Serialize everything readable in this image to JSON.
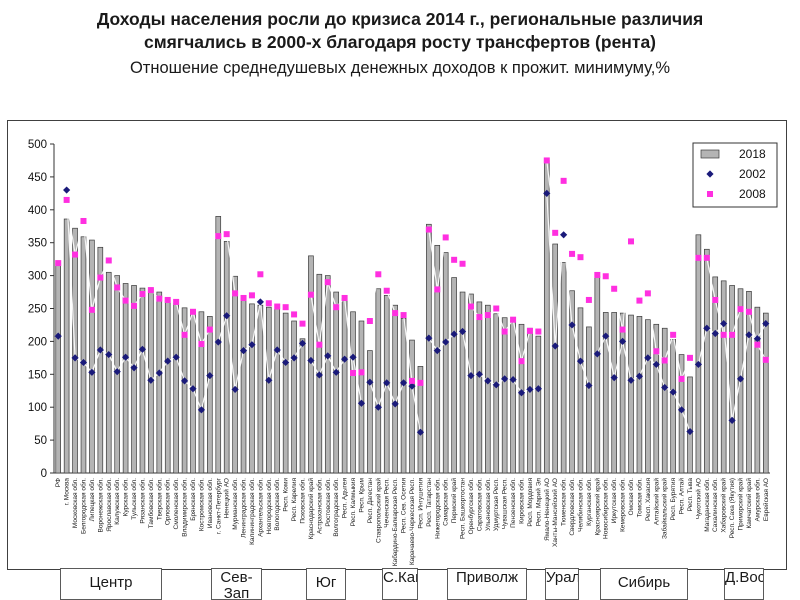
{
  "header": {
    "title_line1": "Доходы населения росли до кризиса 2014 г., региональные различия",
    "title_line2": "смягчались в 2000-х благодаря росту трансфертов (рента)",
    "subtitle": "Отношение среднедушевых денежных доходов к прожит. минимуму,%"
  },
  "regions": [
    "Центр",
    "Сев-Зап",
    "Юг",
    "С.Кав",
    "Приволж",
    "Урал",
    "Сибирь",
    "Д.Вост"
  ],
  "chart_data": {
    "type": "bar",
    "ylim": [
      0,
      500
    ],
    "yticks": [
      0,
      50,
      100,
      150,
      200,
      250,
      300,
      350,
      400,
      450,
      500
    ],
    "grid": false,
    "legend_position": "top-right",
    "colors": {
      "bar_2018": "#b4b4b4",
      "series_2002": "#1a1a7a",
      "series_2008": "#ff2fe0"
    },
    "legend": [
      "2018",
      "2002",
      "2008"
    ],
    "categories": [
      "РФ",
      "г. Москва",
      "Московская обл.",
      "Белгородская обл.",
      "Липецкая обл.",
      "Воронежская обл.",
      "Ярославская обл.",
      "Калужская обл.",
      "Курская обл.",
      "Тульская обл.",
      "Рязанская обл.",
      "Тамбовская обл.",
      "Тверская обл.",
      "Орловская обл.",
      "Смоленская обл.",
      "Владимирская обл.",
      "Брянская обл.",
      "Костромская обл.",
      "Ивановская обл.",
      "г. Санкт-Петербург",
      "Ненецкий АО",
      "Мурманская обл.",
      "Ленинградская обл.",
      "Калининградская обл.",
      "Архангельская обл.",
      "Новгородская обл.",
      "Вологодская обл.",
      "Респ. Коми",
      "Респ. Карелия",
      "Псковская обл.",
      "Краснодарский край",
      "Астраханская обл.",
      "Ростовская обл.",
      "Волгоградская обл.",
      "Респ. Адыгея",
      "Респ. Калмыкия",
      "Респ. Крым",
      "Респ. Дагестан",
      "Ставропольский край",
      "Чеченская Респ.",
      "Кабардино-Балкарская Респ.",
      "Респ. Сев. Осетия",
      "Карачаево-Черкесская Респ.",
      "Респ. Ингушетия",
      "Респ. Татарстан",
      "Нижегородская обл.",
      "Самарская обл.",
      "Пермский край",
      "Респ. Башкортостан",
      "Оренбургская обл.",
      "Саратовская обл.",
      "Ульяновская обл.",
      "Удмуртская Респ.",
      "Чувашская Респ.",
      "Пензенская обл.",
      "Кировская обл.",
      "Респ. Мордовия",
      "Респ. Марий Эл",
      "Ямало-Ненецкий АО",
      "Ханты-Мансийский АО",
      "Тюменская обл.",
      "Свердловская обл.",
      "Челябинская обл.",
      "Курганская обл.",
      "Красноярский край",
      "Новосибирская обл.",
      "Иркутская обл.",
      "Кемеровская обл.",
      "Омская обл.",
      "Томская обл.",
      "Респ. Хакасия",
      "Алтайский край",
      "Забайкальский край",
      "Респ. Бурятия",
      "Респ. Алтай",
      "Респ. Тыва",
      "Чукотский АО",
      "Магаданская обл.",
      "Сахалинская обл.",
      "Хабаровский край",
      "Респ. Саха (Якутия)",
      "Приморский край",
      "Камчатский край",
      "Амурская обл.",
      "Еврейская АО"
    ],
    "series": [
      {
        "name": "2018",
        "kind": "bar",
        "values": [
          319,
          386,
          372,
          359,
          354,
          343,
          305,
          300,
          288,
          285,
          281,
          280,
          275,
          265,
          258,
          251,
          248,
          245,
          238,
          390,
          352,
          299,
          265,
          257,
          255,
          252,
          249,
          243,
          231,
          204,
          330,
          302,
          300,
          275,
          265,
          245,
          231,
          186,
          280,
          270,
          255,
          235,
          202,
          162,
          378,
          346,
          335,
          297,
          275,
          272,
          260,
          255,
          242,
          236,
          232,
          226,
          220,
          208,
          475,
          348,
          320,
          277,
          251,
          222,
          300,
          244,
          244,
          243,
          240,
          238,
          233,
          226,
          220,
          203,
          180,
          146,
          362,
          340,
          298,
          292,
          285,
          280,
          276,
          252,
          243
        ]
      },
      {
        "name": "2002",
        "kind": "point",
        "values": [
          208,
          430,
          175,
          168,
          153,
          187,
          180,
          154,
          176,
          160,
          188,
          141,
          152,
          170,
          176,
          140,
          128,
          96,
          148,
          199,
          239,
          127,
          186,
          195,
          260,
          141,
          187,
          168,
          175,
          197,
          171,
          149,
          178,
          153,
          173,
          176,
          106,
          138,
          100,
          137,
          105,
          137,
          132,
          62,
          205,
          186,
          199,
          211,
          215,
          148,
          150,
          140,
          134,
          143,
          142,
          122,
          127,
          128,
          425,
          193,
          362,
          225,
          170,
          133,
          181,
          208,
          145,
          200,
          141,
          147,
          175,
          165,
          130,
          123,
          96,
          63,
          165,
          220,
          212,
          227,
          80,
          143,
          210,
          204,
          227
        ]
      },
      {
        "name": "2008",
        "kind": "point",
        "values": [
          319,
          415,
          332,
          383,
          248,
          297,
          323,
          282,
          262,
          254,
          272,
          278,
          265,
          263,
          260,
          210,
          245,
          196,
          218,
          360,
          363,
          273,
          266,
          270,
          302,
          258,
          253,
          252,
          241,
          227,
          271,
          195,
          290,
          252,
          266,
          152,
          153,
          231,
          302,
          277,
          243,
          240,
          140,
          137,
          370,
          279,
          358,
          324,
          318,
          253,
          237,
          240,
          250,
          215,
          233,
          170,
          216,
          215,
          475,
          365,
          444,
          333,
          328,
          263,
          301,
          299,
          280,
          218,
          352,
          262,
          273,
          185,
          171,
          210,
          143,
          175,
          327,
          327,
          263,
          210,
          210,
          249,
          245,
          195,
          172
        ]
      }
    ],
    "region_ranges": [
      [
        1,
        18
      ],
      [
        19,
        29
      ],
      [
        30,
        36
      ],
      [
        37,
        43
      ],
      [
        44,
        57
      ],
      [
        58,
        63
      ],
      [
        64,
        75
      ],
      [
        76,
        84
      ]
    ]
  }
}
